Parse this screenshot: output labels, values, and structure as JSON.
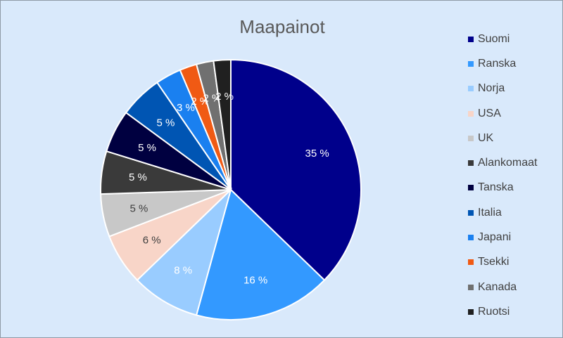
{
  "chart_data": {
    "type": "pie",
    "title": "Maapainot",
    "legend_position": "right",
    "categories": [
      "Suomi",
      "Ranska",
      "Norja",
      "USA",
      "UK",
      "Alankomaat",
      "Tanska",
      "Italia",
      "Japani",
      "Tsekki",
      "Kanada",
      "Ruotsi"
    ],
    "values": [
      35,
      16,
      8,
      6,
      5,
      5,
      5,
      5,
      3,
      2,
      2,
      2
    ],
    "labels": [
      "35 %",
      "16 %",
      "8 %",
      "6 %",
      "5 %",
      "5 %",
      "5 %",
      "5 %",
      "3 %",
      "2 %",
      "2 %",
      "2 %"
    ],
    "colors": [
      "#00008b",
      "#3399ff",
      "#99ccff",
      "#f8d5c8",
      "#c8c8c8",
      "#3a3a3a",
      "#000040",
      "#0055b3",
      "#1a80f0",
      "#f05a14",
      "#707070",
      "#202020"
    ],
    "label_colors": [
      "#ffffff",
      "#ffffff",
      "#ffffff",
      "#404040",
      "#404040",
      "#ffffff",
      "#ffffff",
      "#ffffff",
      "#ffffff",
      "#ffffff",
      "#ffffff",
      "#ffffff"
    ]
  }
}
